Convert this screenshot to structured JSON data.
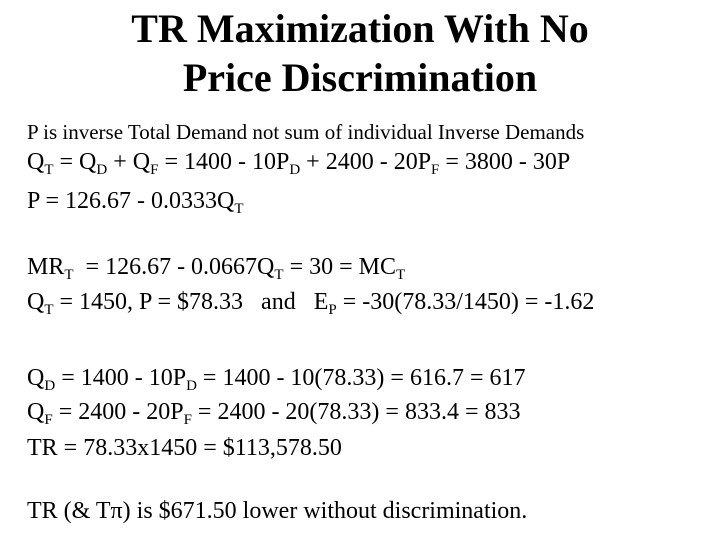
{
  "title": [
    "TR Maximization With No",
    "Price Discrimination"
  ],
  "lines": [
    [
      "P is inverse Total Demand not sum of individual Inverse Demands"
    ],
    [
      "Q",
      {
        "sub": "T"
      },
      " = Q",
      {
        "sub": "D"
      },
      " + Q",
      {
        "sub": "F"
      },
      " = 1400 - 10P",
      {
        "sub": "D"
      },
      " + 2400 - 20P",
      {
        "sub": "F"
      },
      " = 3800 - 30P"
    ],
    [
      "P = 126.67 - 0.0333Q",
      {
        "sub": "T"
      }
    ],
    [
      "MR",
      {
        "sub": "T"
      },
      "  = 126.67 - 0.0667Q",
      {
        "sub": "T"
      },
      " = 30 = MC",
      {
        "sub": "T"
      }
    ],
    [
      "Q",
      {
        "sub": "T"
      },
      " = 1450, P = $78.33   and   E",
      {
        "sub": "P"
      },
      " = -30(78.33/1450) = -1.62"
    ],
    [
      "Q",
      {
        "sub": "D"
      },
      " = 1400 - 10P",
      {
        "sub": "D"
      },
      " = 1400 - 10(78.33) = 616.7 = 617"
    ],
    [
      "Q",
      {
        "sub": "F"
      },
      " = 2400 - 20P",
      {
        "sub": "F"
      },
      " = 2400 - 20(78.33) = 833.4 = 833"
    ],
    [
      "TR = 78.33x1450 = $113,578.50"
    ],
    [
      "TR (& Tπ) is $671.50 lower without discrimination."
    ]
  ]
}
